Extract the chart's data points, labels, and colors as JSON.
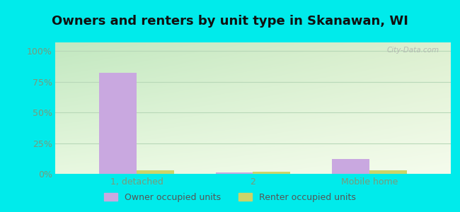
{
  "title": "Owners and renters by unit type in Skanawan, WI",
  "categories": [
    "1, detached",
    "2",
    "Mobile home"
  ],
  "owner_values": [
    82,
    1,
    12
  ],
  "renter_values": [
    3,
    2,
    3
  ],
  "owner_color": "#c9a8e0",
  "renter_color": "#ccd468",
  "bg_outer": "#00ebeb",
  "bg_plot_topleft": "#c8e8c8",
  "bg_plot_bottomright": "#f0f8e8",
  "title_fontsize": 13,
  "tick_label_fontsize": 9,
  "legend_fontsize": 9,
  "yticks": [
    0,
    25,
    50,
    75,
    100
  ],
  "ytick_labels": [
    "0%",
    "25%",
    "50%",
    "75%",
    "100%"
  ],
  "ylim": [
    0,
    107
  ],
  "bar_width": 0.32,
  "grid_color": "#b8d8b8",
  "watermark": "City-Data.com",
  "tick_color": "#7a9a7a"
}
